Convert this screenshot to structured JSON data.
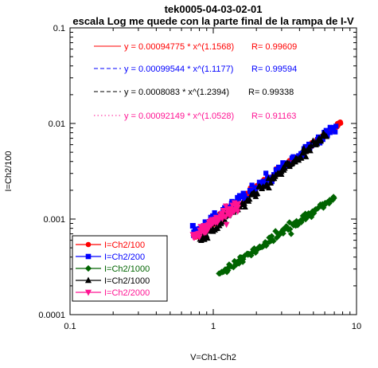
{
  "chart_data": {
    "type": "scatter",
    "title": "tek0005-04-03-02-01",
    "subtitle": "escala Log me quede con la parte final de la rampa de I-V",
    "xlabel": "V=Ch1-Ch2",
    "ylabel": "I=Ch2/100",
    "xscale": "log",
    "yscale": "log",
    "xlim": [
      0.1,
      10
    ],
    "ylim": [
      0.0001,
      0.1
    ],
    "x_ticks": [
      "0.1",
      "1",
      "10"
    ],
    "y_ticks": [
      "0.0001",
      "0.001",
      "0.01",
      "0.1"
    ],
    "grid": false,
    "legend_position": "bottom-left",
    "series": [
      {
        "name": "I=Ch2/100",
        "color": "#ff0000",
        "marker": "circle",
        "a": 0.00094775,
        "b": 1.1568,
        "x_range": [
          0.75,
          7.7
        ],
        "n": 110,
        "noise": 0.04,
        "x": [
          7.4,
          7.55,
          7.7
        ],
        "y": [
          0.0095,
          0.0101,
          0.0103
        ]
      },
      {
        "name": "I=Ch2/200",
        "color": "#0000ff",
        "marker": "square",
        "a": 0.00099544,
        "b": 1.1177,
        "x_range": [
          0.72,
          7.2
        ],
        "n": 110,
        "noise": 0.05,
        "x": [
          0.72,
          0.75
        ],
        "y": [
          0.00085,
          0.00078
        ]
      },
      {
        "name": "I=Ch2/1000",
        "color": "#006400",
        "marker": "diamond",
        "a": 0.00024,
        "b": 1.0,
        "x_range": [
          1.1,
          7.0
        ],
        "n": 110,
        "noise": 0.04,
        "x": [],
        "y": []
      },
      {
        "name": "I=Ch2/1000",
        "color": "#000000",
        "marker": "triangle-up",
        "a": 0.0008083,
        "b": 1.2394,
        "x_range": [
          0.8,
          6.2
        ],
        "n": 120,
        "noise": 0.05,
        "x": [],
        "y": []
      },
      {
        "name": "I=Ch2/2000",
        "color": "#ff1493",
        "marker": "triangle-down",
        "a": 0.00092149,
        "b": 1.0528,
        "x_range": [
          0.72,
          1.5
        ],
        "n": 80,
        "noise": 0.06,
        "x": [],
        "y": []
      }
    ],
    "fit_legend": [
      {
        "style": "solid",
        "color": "#ff0000",
        "text": "y = 0.00094775 * x^(1.1568)",
        "r_text": "R= 0.99609"
      },
      {
        "style": "dashed",
        "color": "#0000ff",
        "text": "y = 0.00099544 * x^(1.1177)",
        "r_text": "R= 0.99594"
      },
      {
        "style": "dashed",
        "color": "#000000",
        "text": "y = 0.0008083 * x^(1.2394)",
        "r_text": "R= 0.99338"
      },
      {
        "style": "dotted",
        "color": "#ff1493",
        "text": "y = 0.00092149 * x^(1.0528)",
        "r_text": "R= 0.91163"
      }
    ]
  }
}
